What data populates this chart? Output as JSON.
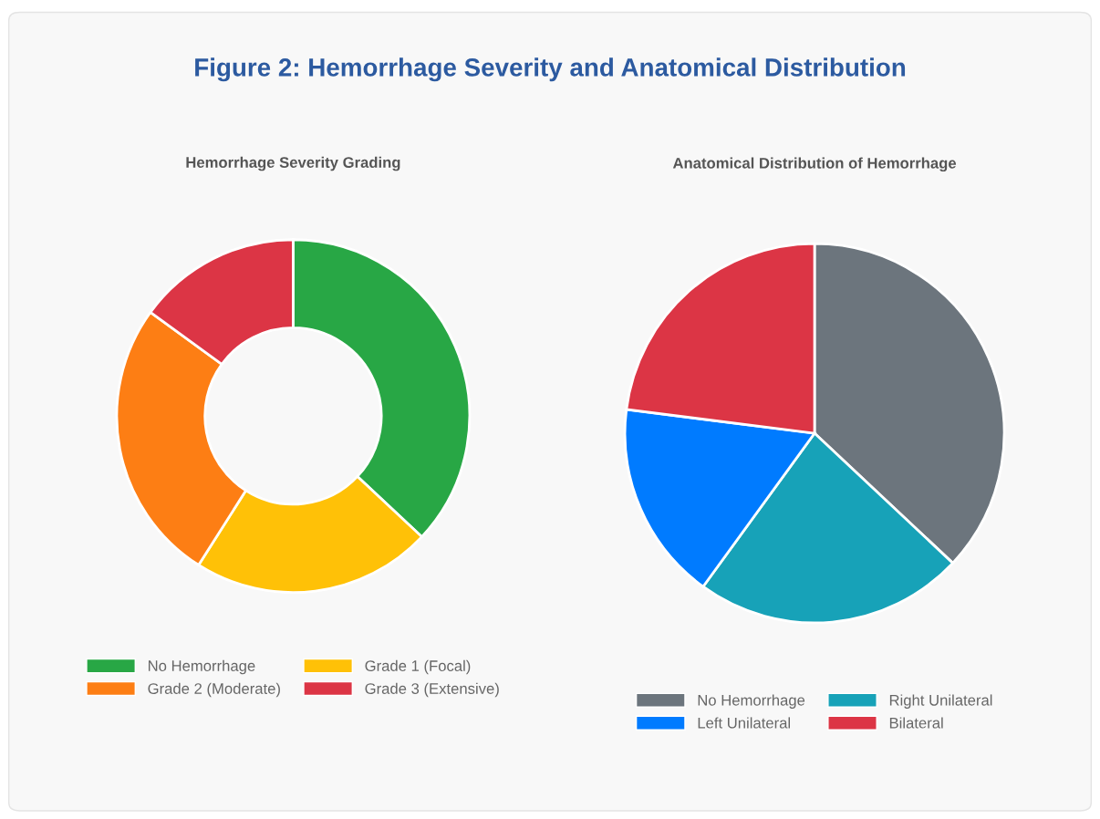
{
  "chart_data": [
    {
      "type": "donut",
      "title": "Hemorrhage Severity Grading",
      "annotations": [
        "Figure 2: Hemorrhage Severity and Anatomical Distribution"
      ],
      "categories": [
        "No Hemorrhage",
        "Grade 1 (Focal)",
        "Grade 2 (Moderate)",
        "Grade 3 (Extensive)"
      ],
      "values": [
        37,
        22,
        26,
        15
      ],
      "colors": [
        "#28a745",
        "#ffc107",
        "#fd7e14",
        "#dc3545"
      ],
      "legend": "bottom"
    },
    {
      "type": "pie",
      "title": "Anatomical Distribution of Hemorrhage",
      "categories": [
        "No Hemorrhage",
        "Right Unilateral",
        "Left Unilateral",
        "Bilateral"
      ],
      "values": [
        37,
        23,
        17,
        23
      ],
      "colors": [
        "#6c757d",
        "#17a2b8",
        "#007bff",
        "#dc3545"
      ],
      "legend": "bottom"
    }
  ]
}
